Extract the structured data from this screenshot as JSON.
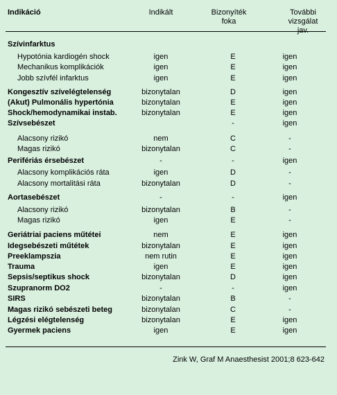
{
  "header": {
    "indikacio": "Indikáció",
    "indikalt": "Indikált",
    "bizonyitek": [
      "Bizonyíték",
      "foka"
    ],
    "tovabbi": [
      "További",
      "vizsgálat jav."
    ]
  },
  "rows": [
    {
      "label": "Szívinfarktus",
      "style": "bold",
      "c1": "",
      "c2": "",
      "c3": ""
    },
    {
      "label": "Hypotónia kardiogén shock",
      "style": "indent",
      "c1": "igen",
      "c2": "E",
      "c3": "igen"
    },
    {
      "label": "Mechanikus komplikációk",
      "style": "indent",
      "c1": "igen",
      "c2": "E",
      "c3": "igen"
    },
    {
      "label": "Jobb szívfél infarktus",
      "style": "indent",
      "c1": "igen",
      "c2": "E",
      "c3": "igen"
    },
    {
      "label": "Kongesztív szívelégtelenség",
      "style": "bold",
      "c1": "bizonytalan",
      "c2": "D",
      "c3": "igen"
    },
    {
      "label": "(Akut) Pulmonális hypertónia",
      "style": "bold",
      "c1": "bizonytalan",
      "c2": "E",
      "c3": "igen"
    },
    {
      "label": "Shock/hemodynamikai instab.",
      "style": "bold",
      "c1": "bizonytalan",
      "c2": "E",
      "c3": "igen"
    },
    {
      "label": "Szívsebészet",
      "style": "bold",
      "c1": "",
      "c2": "-",
      "c3": "igen"
    },
    {
      "label": "Alacsony rizikó",
      "style": "indent",
      "c1": "nem",
      "c2": "C",
      "c3": "-"
    },
    {
      "label": "Magas rizikó",
      "style": "indent",
      "c1": "bizonytalan",
      "c2": "C",
      "c3": "-"
    },
    {
      "label": "Perifériás érsebészet",
      "style": "bold",
      "c1": "-",
      "c2": "-",
      "c3": "igen"
    },
    {
      "label": "Alacsony komplikációs ráta",
      "style": "indent",
      "c1": "igen",
      "c2": "D",
      "c3": "-"
    },
    {
      "label": "Alacsony mortalitási ráta",
      "style": "indent",
      "c1": "bizonytalan",
      "c2": "D",
      "c3": "-"
    },
    {
      "label": "Aortasebészet",
      "style": "bold",
      "c1": "-",
      "c2": "-",
      "c3": "igen"
    },
    {
      "label": "Alacsony rizikó",
      "style": "indent",
      "c1": "bizonytalan",
      "c2": "B",
      "c3": "-"
    },
    {
      "label": "Magas rizikó",
      "style": "indent",
      "c1": "igen",
      "c2": "E",
      "c3": "-"
    },
    {
      "label": "Geriátriai paciens műtétei",
      "style": "bold",
      "c1": "nem",
      "c2": "E",
      "c3": "igen"
    },
    {
      "label": "Idegsebészeti műtétek",
      "style": "bold",
      "c1": "bizonytalan",
      "c2": "E",
      "c3": "igen"
    },
    {
      "label": "Preeklampszia",
      "style": "bold",
      "c1": "nem rutin",
      "c2": "E",
      "c3": "igen"
    },
    {
      "label": "Trauma",
      "style": "bold",
      "c1": "igen",
      "c2": "E",
      "c3": "igen"
    },
    {
      "label": "Sepsis/septikus shock",
      "style": "bold",
      "c1": "bizonytalan",
      "c2": "D",
      "c3": "igen"
    },
    {
      "label": "Szupranorm DO2",
      "style": "bold",
      "c1": "-",
      "c2": "-",
      "c3": "igen"
    },
    {
      "label": "SIRS",
      "style": "bold",
      "c1": "bizonytalan",
      "c2": "B",
      "c3": "-"
    },
    {
      "label": "Magas rizikó sebészeti beteg",
      "style": "bold",
      "c1": "bizonytalan",
      "c2": "C",
      "c3": "-"
    },
    {
      "label": "Légzési elégtelenség",
      "style": "bold",
      "c1": "bizonytalan",
      "c2": "E",
      "c3": "igen"
    },
    {
      "label": "Gyermek paciens",
      "style": "bold",
      "c1": "igen",
      "c2": "E",
      "c3": "igen"
    }
  ],
  "citation": "Zink W, Graf M Anaesthesist 2001;8 623-642"
}
